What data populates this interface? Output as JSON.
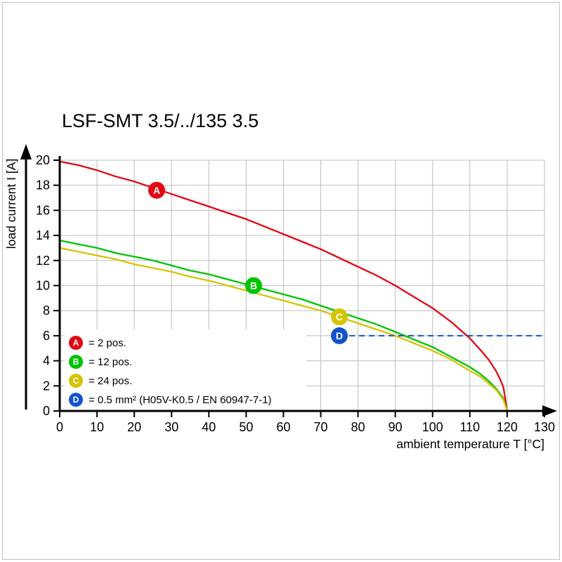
{
  "chart_data": {
    "type": "line",
    "title": "LSF-SMT 3.5/../135 3.5",
    "xlabel": "ambient temperature T [°C]",
    "ylabel": "load current I [A]",
    "xlim": [
      0,
      130
    ],
    "ylim": [
      0,
      20
    ],
    "xticks": [
      0,
      10,
      20,
      30,
      40,
      50,
      60,
      70,
      80,
      90,
      100,
      110,
      120,
      130
    ],
    "yticks": [
      0,
      2,
      4,
      6,
      8,
      10,
      12,
      14,
      16,
      18,
      20
    ],
    "grid": true,
    "grid_color": "#bdbdbd",
    "axis_color": "#000000",
    "legend_position": "bottom-left-inside",
    "series": [
      {
        "id": "A",
        "legend_label": "= 2 pos.",
        "color": "#e30613",
        "marker": {
          "x": 26,
          "y": 17.6
        },
        "points": [
          [
            0,
            19.9
          ],
          [
            5,
            19.6
          ],
          [
            10,
            19.2
          ],
          [
            15,
            18.7
          ],
          [
            20,
            18.3
          ],
          [
            25,
            17.8
          ],
          [
            30,
            17.3
          ],
          [
            35,
            16.8
          ],
          [
            40,
            16.3
          ],
          [
            45,
            15.8
          ],
          [
            50,
            15.3
          ],
          [
            55,
            14.7
          ],
          [
            60,
            14.1
          ],
          [
            65,
            13.5
          ],
          [
            70,
            12.9
          ],
          [
            75,
            12.2
          ],
          [
            80,
            11.5
          ],
          [
            85,
            10.8
          ],
          [
            90,
            10.0
          ],
          [
            95,
            9.1
          ],
          [
            100,
            8.2
          ],
          [
            105,
            7.1
          ],
          [
            110,
            5.8
          ],
          [
            113,
            4.8
          ],
          [
            115,
            4.1
          ],
          [
            117,
            3.2
          ],
          [
            118,
            2.6
          ],
          [
            119,
            1.9
          ],
          [
            120,
            0
          ]
        ]
      },
      {
        "id": "B",
        "legend_label": "= 12 pos.",
        "color": "#00c300",
        "marker": {
          "x": 52,
          "y": 10
        },
        "points": [
          [
            0,
            13.6
          ],
          [
            5,
            13.3
          ],
          [
            10,
            13.0
          ],
          [
            15,
            12.6
          ],
          [
            20,
            12.3
          ],
          [
            25,
            12.0
          ],
          [
            30,
            11.6
          ],
          [
            35,
            11.2
          ],
          [
            40,
            10.9
          ],
          [
            45,
            10.5
          ],
          [
            50,
            10.1
          ],
          [
            55,
            9.7
          ],
          [
            60,
            9.3
          ],
          [
            65,
            8.9
          ],
          [
            70,
            8.4
          ],
          [
            75,
            7.9
          ],
          [
            80,
            7.4
          ],
          [
            85,
            6.9
          ],
          [
            90,
            6.3
          ],
          [
            95,
            5.7
          ],
          [
            100,
            5.1
          ],
          [
            105,
            4.3
          ],
          [
            110,
            3.5
          ],
          [
            113,
            2.9
          ],
          [
            115,
            2.4
          ],
          [
            117,
            1.8
          ],
          [
            118,
            1.4
          ],
          [
            119,
            1.0
          ],
          [
            120,
            0
          ]
        ]
      },
      {
        "id": "C",
        "legend_label": "= 24 pos.",
        "color": "#d3c400",
        "marker": {
          "x": 75,
          "y": 7.5
        },
        "points": [
          [
            0,
            13.0
          ],
          [
            5,
            12.7
          ],
          [
            10,
            12.4
          ],
          [
            15,
            12.1
          ],
          [
            20,
            11.7
          ],
          [
            25,
            11.4
          ],
          [
            30,
            11.1
          ],
          [
            35,
            10.7
          ],
          [
            40,
            10.4
          ],
          [
            45,
            10.0
          ],
          [
            50,
            9.6
          ],
          [
            55,
            9.2
          ],
          [
            60,
            8.8
          ],
          [
            65,
            8.4
          ],
          [
            70,
            8.0
          ],
          [
            75,
            7.5
          ],
          [
            80,
            7.0
          ],
          [
            85,
            6.5
          ],
          [
            90,
            6.0
          ],
          [
            95,
            5.4
          ],
          [
            100,
            4.8
          ],
          [
            105,
            4.1
          ],
          [
            110,
            3.2
          ],
          [
            113,
            2.7
          ],
          [
            115,
            2.2
          ],
          [
            117,
            1.7
          ],
          [
            118,
            1.3
          ],
          [
            119,
            0.9
          ],
          [
            120,
            0
          ]
        ]
      },
      {
        "id": "D",
        "legend_label": "= 0.5 mm² (H05V-K0.5 / EN 60947-7-1)",
        "color": "#1253cc",
        "marker": {
          "x": 75,
          "y": 6
        },
        "dashed_line": {
          "y": 6,
          "x_start": 75,
          "x_end": 130
        }
      }
    ]
  }
}
